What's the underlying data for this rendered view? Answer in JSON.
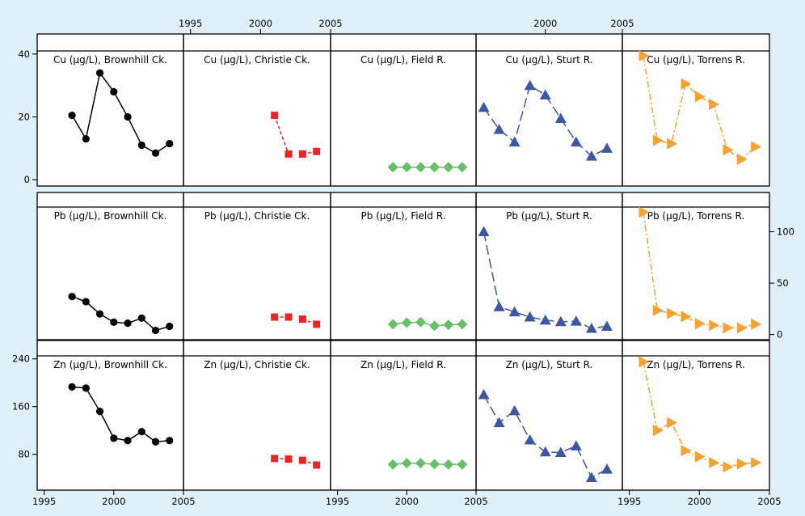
{
  "chart_data": {
    "type": "line",
    "layout": "trellis",
    "background_color": "#dff0f9",
    "panel_color": "#ffffff",
    "grid": false,
    "legend": "none",
    "rows": [
      {
        "metal": "Cu",
        "ylim": [
          -2,
          41
        ],
        "yticks": [
          0,
          20,
          40
        ],
        "y_axis_side": "left"
      },
      {
        "metal": "Pb",
        "ylim": [
          -5,
          124
        ],
        "yticks": [
          0,
          50,
          100
        ],
        "y_axis_side": "right"
      },
      {
        "metal": "Zn",
        "ylim": [
          20,
          245
        ],
        "yticks": [
          80,
          160,
          240
        ],
        "y_axis_side": "left"
      }
    ],
    "columns": [
      {
        "site": "Brownhill Ck.",
        "xlim": [
          1994.5,
          2005
        ],
        "xticks": [
          1995,
          2000,
          2005
        ],
        "x_axis_side": "bottom",
        "color": "#000000",
        "marker": "circle",
        "dash": "none"
      },
      {
        "site": "Christie Ck.",
        "xlim": [
          1994.5,
          2005
        ],
        "xticks": [
          1995,
          2000,
          2005
        ],
        "x_axis_side": "top",
        "color": "#e8262a",
        "marker": "square",
        "dash": "4,3"
      },
      {
        "site": "Field R.",
        "xlim": [
          1994.5,
          2005
        ],
        "xticks": [
          1995,
          2000,
          2005
        ],
        "x_axis_side": "bottom",
        "color": "#66c06a",
        "marker": "diamond",
        "dash": "none"
      },
      {
        "site": "Sturt R.",
        "xlim": [
          1995.5,
          2005
        ],
        "xticks": [
          1995,
          2000,
          2005
        ],
        "x_axis_side": "top",
        "color": "#3f56a3",
        "marker": "triangle-up",
        "dash": "12,5"
      },
      {
        "site": "Torrens R.",
        "xlim": [
          1994.5,
          2005
        ],
        "xticks": [
          1995,
          2000,
          2005
        ],
        "x_axis_side": "bottom",
        "color": "#f5a233",
        "marker": "triangle-right",
        "dash": "8,3,2,3"
      }
    ],
    "panels": [
      {
        "title": "Cu (μg/L), Brownhill Ck.",
        "row": 0,
        "col": 0,
        "x": [
          1997,
          1998,
          1999,
          2000,
          2001,
          2002,
          2003,
          2004
        ],
        "segments": [
          [
            20.5,
            13,
            34,
            28,
            20,
            11,
            8.5,
            11.5
          ]
        ]
      },
      {
        "title": "Cu (μg/L), Christie Ck.",
        "row": 0,
        "col": 1,
        "x": [
          2001,
          2002,
          2003,
          2004
        ],
        "segments": [
          [
            20.5,
            8.2
          ],
          [
            8.2,
            9
          ]
        ],
        "segment_x": [
          [
            2001,
            2002
          ],
          [
            2003,
            2004
          ]
        ]
      },
      {
        "title": "Cu (μg/L), Field R.",
        "row": 0,
        "col": 2,
        "x": [
          1999,
          2000,
          2001,
          2002,
          2003,
          2004
        ],
        "segments": [
          [
            4,
            4,
            4,
            4,
            4,
            4
          ]
        ]
      },
      {
        "title": "Cu (μg/L), Sturt R.",
        "row": 0,
        "col": 3,
        "x": [
          1996,
          1997,
          1998,
          1999,
          2000,
          2001,
          2002,
          2003,
          2004
        ],
        "segments": [
          [
            23,
            16,
            12,
            30,
            27,
            19.5,
            12,
            7.5,
            10
          ]
        ]
      },
      {
        "title": "Cu (μg/L), Torrens R.",
        "row": 0,
        "col": 4,
        "x": [
          1996,
          1997,
          1998,
          1999,
          2000,
          2001,
          2002,
          2003,
          2004
        ],
        "segments": [
          [
            39.5,
            12.5,
            11.5,
            30.5,
            26.5,
            24,
            9.5,
            6.5,
            10.5
          ]
        ]
      },
      {
        "title": "Pb (μg/L), Brownhill Ck.",
        "row": 1,
        "col": 0,
        "x": [
          1997,
          1998,
          1999,
          2000,
          2001,
          2002,
          2003,
          2004
        ],
        "segments": [
          [
            37,
            32,
            20,
            12,
            11,
            16,
            4,
            8
          ]
        ]
      },
      {
        "title": "Pb (μg/L), Christie Ck.",
        "row": 1,
        "col": 1,
        "x": [
          2001,
          2002,
          2003,
          2004
        ],
        "segments": [
          [
            17,
            17
          ],
          [
            15,
            10
          ]
        ],
        "segment_x": [
          [
            2001,
            2002
          ],
          [
            2003,
            2004
          ]
        ]
      },
      {
        "title": "Pb (μg/L), Field R.",
        "row": 1,
        "col": 2,
        "x": [
          1999,
          2000,
          2001,
          2002,
          2003,
          2004
        ],
        "segments": [
          [
            10,
            11.5,
            12,
            8.5,
            9.5,
            10
          ]
        ]
      },
      {
        "title": "Pb (μg/L), Sturt R.",
        "row": 1,
        "col": 3,
        "x": [
          1996,
          1997,
          1998,
          1999,
          2000,
          2001,
          2002,
          2003,
          2004
        ],
        "segments": [
          [
            100,
            27,
            22,
            17,
            14,
            12.5,
            13,
            6,
            8
          ]
        ]
      },
      {
        "title": "Pb (μg/L), Torrens R.",
        "row": 1,
        "col": 4,
        "x": [
          1996,
          1997,
          1998,
          1999,
          2000,
          2001,
          2002,
          2003,
          2004
        ],
        "segments": [
          [
            119,
            23.5,
            20.5,
            17.5,
            10.5,
            9,
            6.5,
            6.5,
            10
          ]
        ]
      },
      {
        "title": "Zn (μg/L), Brownhill Ck.",
        "row": 2,
        "col": 0,
        "x": [
          1997,
          1998,
          1999,
          2000,
          2001,
          2002,
          2003,
          2004
        ],
        "segments": [
          [
            193,
            191,
            152,
            107,
            103,
            118,
            101,
            103
          ]
        ]
      },
      {
        "title": "Zn (μg/L), Christie Ck.",
        "row": 2,
        "col": 1,
        "x": [
          2001,
          2002,
          2003,
          2004
        ],
        "segments": [
          [
            73,
            72
          ],
          [
            70,
            62
          ]
        ],
        "segment_x": [
          [
            2001,
            2002
          ],
          [
            2003,
            2004
          ]
        ]
      },
      {
        "title": "Zn (μg/L), Field R.",
        "row": 2,
        "col": 2,
        "x": [
          1999,
          2000,
          2001,
          2002,
          2003,
          2004
        ],
        "segments": [
          [
            63,
            65,
            65,
            63.5,
            63,
            63
          ]
        ]
      },
      {
        "title": "Zn (μg/L), Sturt R.",
        "row": 2,
        "col": 3,
        "x": [
          1996,
          1997,
          1998,
          1999,
          2000,
          2001,
          2002,
          2003,
          2004
        ],
        "segments": [
          [
            180,
            133,
            153,
            104,
            84,
            83,
            94,
            41,
            55
          ]
        ]
      },
      {
        "title": "Zn (μg/L), Torrens R.",
        "row": 2,
        "col": 4,
        "x": [
          1996,
          1997,
          1998,
          1999,
          2000,
          2001,
          2002,
          2003,
          2004
        ],
        "segments": [
          [
            235,
            120,
            133,
            86,
            76,
            66,
            59,
            64,
            66
          ]
        ]
      }
    ]
  }
}
